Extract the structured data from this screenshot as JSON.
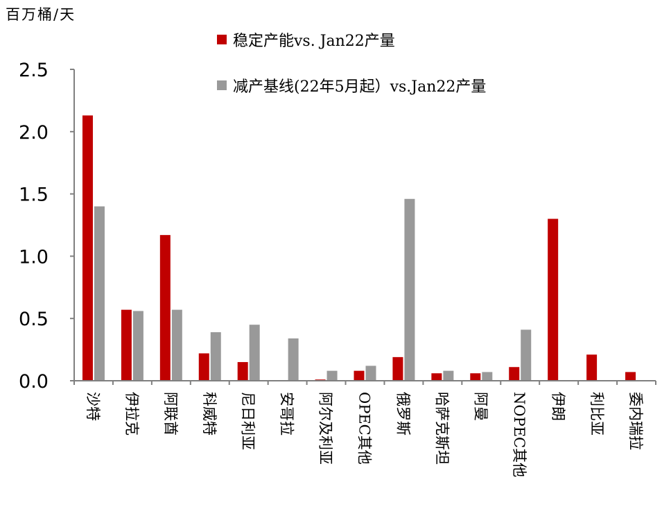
{
  "chart_data": {
    "type": "bar",
    "ylabel": "百万桶/天",
    "ylim": [
      0,
      2.5
    ],
    "yticks": [
      "0.0",
      "0.5",
      "1.0",
      "1.5",
      "2.0",
      "2.5"
    ],
    "categories": [
      "沙特",
      "伊拉克",
      "阿联酋",
      "科威特",
      "尼日利亚",
      "安哥拉",
      "阿尔及利亚",
      "OPEC其他",
      "俄罗斯",
      "哈萨克斯坦",
      "阿曼",
      "NOPEC其他",
      "伊朗",
      "利比亚",
      "委内瑞拉"
    ],
    "series": [
      {
        "name": "稳定产能vs. Jan22产量",
        "color": "#c00000",
        "values": [
          2.13,
          0.57,
          1.17,
          0.22,
          0.15,
          0.0,
          0.01,
          0.08,
          0.19,
          0.06,
          0.06,
          0.11,
          1.3,
          0.21,
          0.07
        ]
      },
      {
        "name": "减产基线(22年5月起）vs.Jan22产量",
        "color": "#999999",
        "values": [
          1.4,
          0.56,
          0.57,
          0.39,
          0.45,
          0.34,
          0.08,
          0.12,
          1.46,
          0.08,
          0.07,
          0.41,
          0.0,
          0.0,
          0.0
        ]
      }
    ],
    "legend_position": "top",
    "grid": false
  }
}
